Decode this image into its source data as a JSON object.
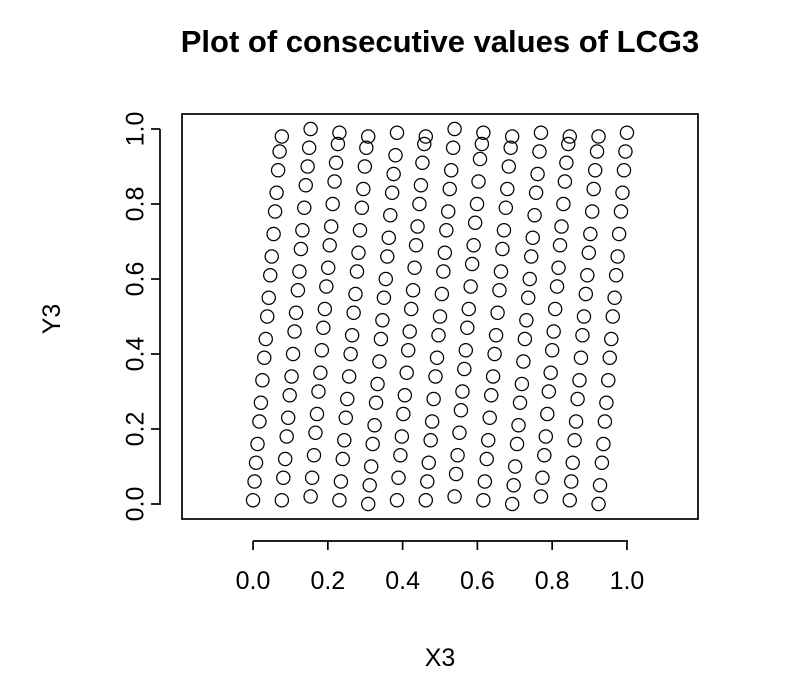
{
  "chart_data": {
    "type": "scatter",
    "title": "Plot of consecutive values of LCG3",
    "xlabel": "X3",
    "ylabel": "Y3",
    "xlim": [
      -0.19,
      1.19
    ],
    "ylim": [
      -0.04,
      1.04
    ],
    "x_ticks": [
      0.0,
      0.2,
      0.4,
      0.6,
      0.8,
      1.0
    ],
    "y_ticks": [
      0.0,
      0.2,
      0.4,
      0.6,
      0.8,
      1.0
    ],
    "x_tick_labels": [
      "0.0",
      "0.2",
      "0.4",
      "0.6",
      "0.8",
      "1.0"
    ],
    "y_tick_labels": [
      "0.0",
      "0.2",
      "0.4",
      "0.6",
      "0.8",
      "1.0"
    ],
    "grid": false,
    "legend": "none",
    "marker": "open-circle",
    "point_color": "#000000",
    "series": [
      {
        "points": [
          [
            0.0,
            0.01
          ],
          [
            0.004,
            0.06
          ],
          [
            0.008,
            0.11
          ],
          [
            0.012,
            0.16
          ],
          [
            0.017,
            0.22
          ],
          [
            0.021,
            0.27
          ],
          [
            0.025,
            0.33
          ],
          [
            0.03,
            0.39
          ],
          [
            0.034,
            0.44
          ],
          [
            0.038,
            0.5
          ],
          [
            0.042,
            0.55
          ],
          [
            0.046,
            0.61
          ],
          [
            0.05,
            0.66
          ],
          [
            0.055,
            0.72
          ],
          [
            0.059,
            0.78
          ],
          [
            0.063,
            0.83
          ],
          [
            0.067,
            0.89
          ],
          [
            0.071,
            0.94
          ],
          [
            0.077,
            0.98
          ],
          [
            0.077,
            0.01
          ],
          [
            0.081,
            0.07
          ],
          [
            0.086,
            0.12
          ],
          [
            0.09,
            0.18
          ],
          [
            0.094,
            0.23
          ],
          [
            0.098,
            0.29
          ],
          [
            0.103,
            0.34
          ],
          [
            0.107,
            0.4
          ],
          [
            0.111,
            0.46
          ],
          [
            0.115,
            0.51
          ],
          [
            0.12,
            0.57
          ],
          [
            0.124,
            0.62
          ],
          [
            0.128,
            0.68
          ],
          [
            0.132,
            0.73
          ],
          [
            0.137,
            0.79
          ],
          [
            0.141,
            0.85
          ],
          [
            0.146,
            0.9
          ],
          [
            0.15,
            0.95
          ],
          [
            0.154,
            1.0
          ],
          [
            0.154,
            0.02
          ],
          [
            0.158,
            0.07
          ],
          [
            0.163,
            0.13
          ],
          [
            0.167,
            0.19
          ],
          [
            0.171,
            0.24
          ],
          [
            0.175,
            0.3
          ],
          [
            0.18,
            0.35
          ],
          [
            0.184,
            0.41
          ],
          [
            0.188,
            0.47
          ],
          [
            0.192,
            0.52
          ],
          [
            0.196,
            0.58
          ],
          [
            0.201,
            0.63
          ],
          [
            0.205,
            0.69
          ],
          [
            0.209,
            0.74
          ],
          [
            0.213,
            0.8
          ],
          [
            0.218,
            0.86
          ],
          [
            0.222,
            0.91
          ],
          [
            0.227,
            0.96
          ],
          [
            0.231,
            0.99
          ],
          [
            0.231,
            0.01
          ],
          [
            0.235,
            0.06
          ],
          [
            0.24,
            0.12
          ],
          [
            0.244,
            0.17
          ],
          [
            0.248,
            0.23
          ],
          [
            0.252,
            0.28
          ],
          [
            0.257,
            0.34
          ],
          [
            0.261,
            0.4
          ],
          [
            0.265,
            0.45
          ],
          [
            0.269,
            0.51
          ],
          [
            0.274,
            0.56
          ],
          [
            0.278,
            0.62
          ],
          [
            0.282,
            0.67
          ],
          [
            0.286,
            0.73
          ],
          [
            0.291,
            0.79
          ],
          [
            0.295,
            0.84
          ],
          [
            0.299,
            0.9
          ],
          [
            0.303,
            0.95
          ],
          [
            0.308,
            0.98
          ],
          [
            0.308,
            0.0
          ],
          [
            0.312,
            0.05
          ],
          [
            0.316,
            0.1
          ],
          [
            0.32,
            0.16
          ],
          [
            0.325,
            0.21
          ],
          [
            0.329,
            0.27
          ],
          [
            0.333,
            0.32
          ],
          [
            0.338,
            0.38
          ],
          [
            0.342,
            0.44
          ],
          [
            0.346,
            0.49
          ],
          [
            0.35,
            0.55
          ],
          [
            0.355,
            0.6
          ],
          [
            0.359,
            0.66
          ],
          [
            0.363,
            0.71
          ],
          [
            0.367,
            0.77
          ],
          [
            0.372,
            0.83
          ],
          [
            0.376,
            0.88
          ],
          [
            0.381,
            0.93
          ],
          [
            0.385,
            0.99
          ],
          [
            0.385,
            0.01
          ],
          [
            0.389,
            0.07
          ],
          [
            0.394,
            0.13
          ],
          [
            0.398,
            0.18
          ],
          [
            0.402,
            0.24
          ],
          [
            0.406,
            0.29
          ],
          [
            0.411,
            0.35
          ],
          [
            0.415,
            0.41
          ],
          [
            0.419,
            0.46
          ],
          [
            0.423,
            0.52
          ],
          [
            0.428,
            0.57
          ],
          [
            0.432,
            0.63
          ],
          [
            0.436,
            0.69
          ],
          [
            0.44,
            0.74
          ],
          [
            0.445,
            0.8
          ],
          [
            0.449,
            0.85
          ],
          [
            0.453,
            0.91
          ],
          [
            0.458,
            0.96
          ],
          [
            0.462,
            0.98
          ],
          [
            0.462,
            0.01
          ],
          [
            0.466,
            0.06
          ],
          [
            0.47,
            0.11
          ],
          [
            0.475,
            0.17
          ],
          [
            0.479,
            0.22
          ],
          [
            0.483,
            0.28
          ],
          [
            0.488,
            0.34
          ],
          [
            0.492,
            0.39
          ],
          [
            0.496,
            0.45
          ],
          [
            0.5,
            0.5
          ],
          [
            0.505,
            0.56
          ],
          [
            0.509,
            0.62
          ],
          [
            0.513,
            0.67
          ],
          [
            0.517,
            0.73
          ],
          [
            0.522,
            0.78
          ],
          [
            0.526,
            0.84
          ],
          [
            0.53,
            0.89
          ],
          [
            0.535,
            0.95
          ],
          [
            0.539,
            1.0
          ],
          [
            0.539,
            0.02
          ],
          [
            0.543,
            0.08
          ],
          [
            0.547,
            0.13
          ],
          [
            0.552,
            0.19
          ],
          [
            0.556,
            0.25
          ],
          [
            0.56,
            0.3
          ],
          [
            0.565,
            0.36
          ],
          [
            0.569,
            0.41
          ],
          [
            0.573,
            0.47
          ],
          [
            0.577,
            0.52
          ],
          [
            0.582,
            0.58
          ],
          [
            0.586,
            0.64
          ],
          [
            0.59,
            0.69
          ],
          [
            0.594,
            0.75
          ],
          [
            0.599,
            0.8
          ],
          [
            0.603,
            0.86
          ],
          [
            0.607,
            0.92
          ],
          [
            0.612,
            0.96
          ],
          [
            0.616,
            0.99
          ],
          [
            0.616,
            0.01
          ],
          [
            0.62,
            0.06
          ],
          [
            0.625,
            0.12
          ],
          [
            0.629,
            0.17
          ],
          [
            0.633,
            0.23
          ],
          [
            0.637,
            0.29
          ],
          [
            0.642,
            0.34
          ],
          [
            0.646,
            0.4
          ],
          [
            0.65,
            0.45
          ],
          [
            0.654,
            0.51
          ],
          [
            0.659,
            0.57
          ],
          [
            0.663,
            0.62
          ],
          [
            0.667,
            0.68
          ],
          [
            0.671,
            0.73
          ],
          [
            0.676,
            0.79
          ],
          [
            0.68,
            0.84
          ],
          [
            0.684,
            0.9
          ],
          [
            0.689,
            0.95
          ],
          [
            0.693,
            0.98
          ],
          [
            0.693,
            0.0
          ],
          [
            0.697,
            0.05
          ],
          [
            0.701,
            0.1
          ],
          [
            0.706,
            0.16
          ],
          [
            0.71,
            0.21
          ],
          [
            0.714,
            0.27
          ],
          [
            0.719,
            0.32
          ],
          [
            0.723,
            0.38
          ],
          [
            0.727,
            0.44
          ],
          [
            0.731,
            0.49
          ],
          [
            0.736,
            0.55
          ],
          [
            0.74,
            0.6
          ],
          [
            0.744,
            0.66
          ],
          [
            0.748,
            0.71
          ],
          [
            0.753,
            0.77
          ],
          [
            0.757,
            0.83
          ],
          [
            0.761,
            0.88
          ],
          [
            0.766,
            0.94
          ],
          [
            0.77,
            0.99
          ],
          [
            0.77,
            0.02
          ],
          [
            0.774,
            0.07
          ],
          [
            0.779,
            0.13
          ],
          [
            0.783,
            0.18
          ],
          [
            0.787,
            0.24
          ],
          [
            0.791,
            0.3
          ],
          [
            0.796,
            0.35
          ],
          [
            0.8,
            0.41
          ],
          [
            0.804,
            0.46
          ],
          [
            0.808,
            0.52
          ],
          [
            0.813,
            0.58
          ],
          [
            0.817,
            0.63
          ],
          [
            0.821,
            0.69
          ],
          [
            0.825,
            0.74
          ],
          [
            0.83,
            0.8
          ],
          [
            0.834,
            0.86
          ],
          [
            0.838,
            0.91
          ],
          [
            0.843,
            0.96
          ],
          [
            0.847,
            0.98
          ],
          [
            0.847,
            0.01
          ],
          [
            0.851,
            0.06
          ],
          [
            0.855,
            0.11
          ],
          [
            0.86,
            0.17
          ],
          [
            0.864,
            0.22
          ],
          [
            0.868,
            0.28
          ],
          [
            0.873,
            0.33
          ],
          [
            0.877,
            0.39
          ],
          [
            0.881,
            0.45
          ],
          [
            0.885,
            0.5
          ],
          [
            0.89,
            0.56
          ],
          [
            0.894,
            0.61
          ],
          [
            0.898,
            0.67
          ],
          [
            0.902,
            0.72
          ],
          [
            0.907,
            0.78
          ],
          [
            0.911,
            0.84
          ],
          [
            0.915,
            0.89
          ],
          [
            0.92,
            0.94
          ],
          [
            0.924,
            0.98
          ],
          [
            0.924,
            0.0
          ],
          [
            0.928,
            0.05
          ],
          [
            0.933,
            0.11
          ],
          [
            0.937,
            0.16
          ],
          [
            0.941,
            0.22
          ],
          [
            0.945,
            0.27
          ],
          [
            0.95,
            0.33
          ],
          [
            0.954,
            0.39
          ],
          [
            0.958,
            0.44
          ],
          [
            0.962,
            0.5
          ],
          [
            0.967,
            0.55
          ],
          [
            0.971,
            0.61
          ],
          [
            0.975,
            0.66
          ],
          [
            0.979,
            0.72
          ],
          [
            0.984,
            0.78
          ],
          [
            0.988,
            0.83
          ],
          [
            0.992,
            0.89
          ],
          [
            0.996,
            0.94
          ],
          [
            1.0,
            0.99
          ]
        ]
      }
    ]
  }
}
